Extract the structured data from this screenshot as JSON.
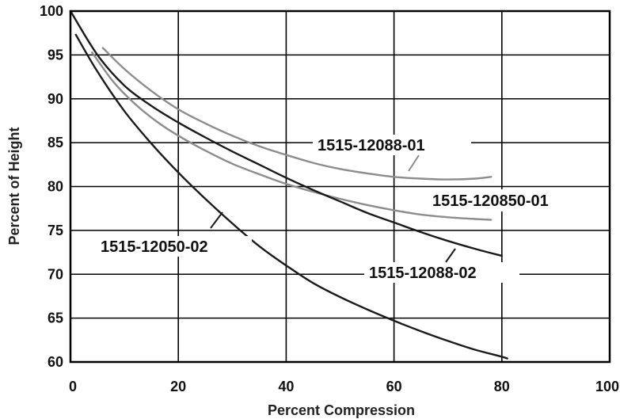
{
  "chart_data": {
    "type": "line",
    "xlabel": "Percent Compression",
    "ylabel": "Percent of Height",
    "xlim": [
      0,
      100
    ],
    "ylim": [
      60,
      100
    ],
    "xticks": [
      0,
      20,
      40,
      60,
      80,
      100
    ],
    "yticks": [
      60,
      65,
      70,
      75,
      80,
      85,
      90,
      95,
      100
    ],
    "grid": true,
    "legend": "none (series labelled directly on the plot)",
    "series": [
      {
        "name": "1515-12088-01",
        "color": "#8c8c8c",
        "x": [
          6,
          10,
          15,
          20,
          25,
          30,
          35,
          40,
          45,
          50,
          55,
          60,
          65,
          70,
          75,
          78
        ],
        "y": [
          95.8,
          93.4,
          90.9,
          88.8,
          87.2,
          85.8,
          84.6,
          83.6,
          82.7,
          82.0,
          81.5,
          81.1,
          80.9,
          80.8,
          80.9,
          81.1
        ]
      },
      {
        "name": "1515-120850-01",
        "color": "#8c8c8c",
        "x": [
          4,
          8,
          12,
          16,
          20,
          25,
          30,
          35,
          40,
          45,
          50,
          55,
          60,
          65,
          70,
          75,
          78
        ],
        "y": [
          95.3,
          91.9,
          89.4,
          87.4,
          85.8,
          84.1,
          82.6,
          81.4,
          80.3,
          79.4,
          78.6,
          77.9,
          77.3,
          76.8,
          76.5,
          76.3,
          76.2
        ]
      },
      {
        "name": "1515-12088-02",
        "color": "#1a1a1a",
        "x": [
          0,
          5,
          10,
          15,
          20,
          25,
          30,
          35,
          40,
          45,
          50,
          55,
          60,
          65,
          70,
          75,
          80
        ],
        "y": [
          100,
          95.0,
          91.5,
          89.2,
          87.3,
          85.6,
          84.0,
          82.5,
          81.0,
          79.6,
          78.3,
          77.0,
          75.9,
          74.8,
          73.8,
          72.9,
          72.1
        ]
      },
      {
        "name": "1515-12050-02",
        "color": "#1a1a1a",
        "x": [
          1,
          5,
          10,
          15,
          20,
          25,
          30,
          35,
          40,
          45,
          50,
          55,
          60,
          65,
          70,
          75,
          80,
          81
        ],
        "y": [
          97.3,
          93.1,
          88.6,
          84.9,
          81.6,
          78.6,
          75.8,
          73.2,
          71.0,
          69.0,
          67.4,
          66.0,
          64.7,
          63.5,
          62.4,
          61.4,
          60.6,
          60.4
        ]
      }
    ]
  }
}
